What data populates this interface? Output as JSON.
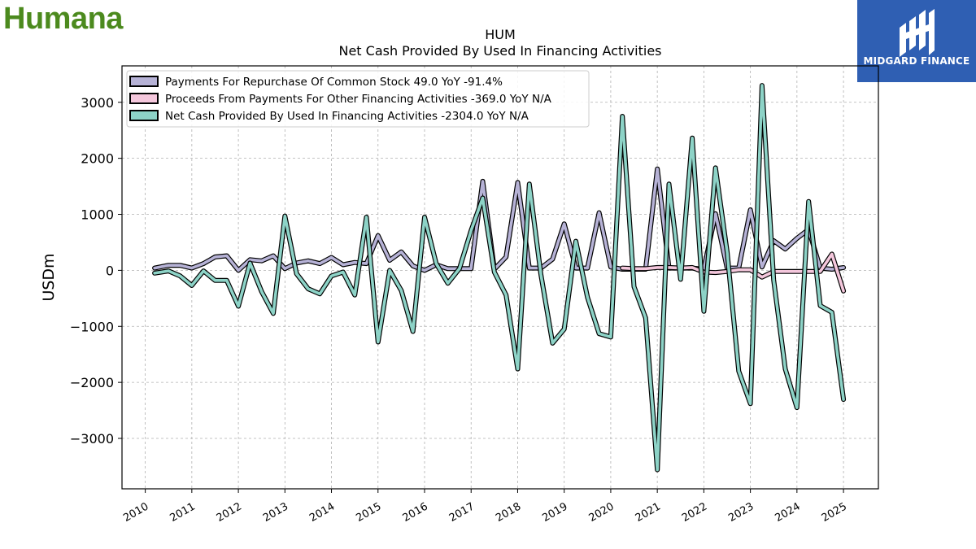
{
  "header": {
    "left_logo_text": "Humana",
    "right_logo_text": "MIDGARD FINANCE"
  },
  "colors": {
    "humana_green": "#4c8a1e",
    "midgard_blue": "#2f5fb3"
  },
  "chart_data": {
    "type": "line",
    "title": "HUM",
    "subtitle": "Net Cash Provided By Used In Financing Activities",
    "ylabel": "USDm",
    "xlabel": "",
    "xlim": [
      2009.5,
      2025.75
    ],
    "ylim": [
      -3900,
      3650
    ],
    "yticks": [
      -3000,
      -2000,
      -1000,
      0,
      1000,
      2000,
      3000
    ],
    "ytick_labels": [
      "−3000",
      "−2000",
      "−1000",
      "0",
      "1000",
      "2000",
      "3000"
    ],
    "xticks": [
      2010,
      2011,
      2012,
      2013,
      2014,
      2015,
      2016,
      2017,
      2018,
      2019,
      2020,
      2021,
      2022,
      2023,
      2024,
      2025
    ],
    "xtick_labels": [
      "2010",
      "2011",
      "2012",
      "2013",
      "2014",
      "2015",
      "2016",
      "2017",
      "2018",
      "2019",
      "2020",
      "2021",
      "2022",
      "2023",
      "2024",
      "2025"
    ],
    "grid": true,
    "legend_position": "top-left",
    "series": [
      {
        "name": "Payments For Repurchase Of Common Stock  49.0 YoY -91.4%",
        "color": "#b6b2d6",
        "points": [
          [
            2010.2,
            40
          ],
          [
            2010.5,
            90
          ],
          [
            2010.75,
            90
          ],
          [
            2011.0,
            40
          ],
          [
            2011.25,
            120
          ],
          [
            2011.5,
            240
          ],
          [
            2011.75,
            260
          ],
          [
            2012.0,
            0
          ],
          [
            2012.25,
            190
          ],
          [
            2012.5,
            170
          ],
          [
            2012.75,
            260
          ],
          [
            2013.0,
            30
          ],
          [
            2013.25,
            130
          ],
          [
            2013.5,
            170
          ],
          [
            2013.75,
            120
          ],
          [
            2014.0,
            230
          ],
          [
            2014.25,
            100
          ],
          [
            2014.5,
            140
          ],
          [
            2014.75,
            120
          ],
          [
            2015.0,
            620
          ],
          [
            2015.25,
            180
          ],
          [
            2015.5,
            330
          ],
          [
            2015.75,
            80
          ],
          [
            2016.0,
            0
          ],
          [
            2016.25,
            100
          ],
          [
            2016.5,
            30
          ],
          [
            2016.75,
            30
          ],
          [
            2017.0,
            30
          ],
          [
            2017.25,
            1590
          ],
          [
            2017.5,
            20
          ],
          [
            2017.75,
            240
          ],
          [
            2018.0,
            1570
          ],
          [
            2018.25,
            40
          ],
          [
            2018.5,
            40
          ],
          [
            2018.75,
            200
          ],
          [
            2019.0,
            830
          ],
          [
            2019.25,
            40
          ],
          [
            2019.5,
            40
          ],
          [
            2019.75,
            1030
          ],
          [
            2020.0,
            60
          ],
          [
            2020.25,
            20
          ],
          [
            2020.5,
            20
          ],
          [
            2020.75,
            20
          ],
          [
            2021.0,
            1810
          ],
          [
            2021.25,
            40
          ],
          [
            2021.5,
            40
          ],
          [
            2021.75,
            40
          ],
          [
            2022.0,
            20
          ],
          [
            2022.25,
            1010
          ],
          [
            2022.5,
            40
          ],
          [
            2022.75,
            40
          ],
          [
            2023.0,
            1080
          ],
          [
            2023.25,
            60
          ],
          [
            2023.5,
            530
          ],
          [
            2023.75,
            380
          ],
          [
            2024.0,
            570
          ],
          [
            2024.25,
            730
          ],
          [
            2024.5,
            40
          ],
          [
            2024.75,
            20
          ],
          [
            2025.0,
            49
          ]
        ]
      },
      {
        "name": "Proceeds From Payments For Other Financing Activities  -369.0 YoY N/A",
        "color": "#f4c7dc",
        "points": [
          [
            2020.25,
            40
          ],
          [
            2020.5,
            30
          ],
          [
            2020.75,
            30
          ],
          [
            2021.0,
            50
          ],
          [
            2021.25,
            50
          ],
          [
            2021.5,
            40
          ],
          [
            2021.75,
            50
          ],
          [
            2022.0,
            -30
          ],
          [
            2022.25,
            -40
          ],
          [
            2022.5,
            -20
          ],
          [
            2022.75,
            10
          ],
          [
            2023.0,
            10
          ],
          [
            2023.25,
            -120
          ],
          [
            2023.5,
            -20
          ],
          [
            2023.75,
            -20
          ],
          [
            2024.0,
            -20
          ],
          [
            2024.25,
            -20
          ],
          [
            2024.5,
            -20
          ],
          [
            2024.75,
            290
          ],
          [
            2025.0,
            -369
          ]
        ]
      },
      {
        "name": "Net Cash Provided By Used In Financing Activities  -2304.0 YoY N/A",
        "color": "#8dd3c7",
        "points": [
          [
            2010.2,
            -50
          ],
          [
            2010.5,
            -10
          ],
          [
            2010.75,
            -100
          ],
          [
            2011.0,
            -270
          ],
          [
            2011.25,
            -10
          ],
          [
            2011.5,
            -180
          ],
          [
            2011.75,
            -180
          ],
          [
            2012.0,
            -640
          ],
          [
            2012.25,
            130
          ],
          [
            2012.5,
            -380
          ],
          [
            2012.75,
            -770
          ],
          [
            2013.0,
            970
          ],
          [
            2013.25,
            -60
          ],
          [
            2013.5,
            -330
          ],
          [
            2013.75,
            -420
          ],
          [
            2014.0,
            -100
          ],
          [
            2014.25,
            -30
          ],
          [
            2014.5,
            -440
          ],
          [
            2014.75,
            950
          ],
          [
            2015.0,
            -1280
          ],
          [
            2015.25,
            0
          ],
          [
            2015.5,
            -360
          ],
          [
            2015.75,
            -1090
          ],
          [
            2016.0,
            950
          ],
          [
            2016.25,
            120
          ],
          [
            2016.5,
            -230
          ],
          [
            2016.75,
            30
          ],
          [
            2017.0,
            710
          ],
          [
            2017.25,
            1290
          ],
          [
            2017.5,
            -30
          ],
          [
            2017.75,
            -440
          ],
          [
            2018.0,
            -1760
          ],
          [
            2018.25,
            1540
          ],
          [
            2018.5,
            -80
          ],
          [
            2018.75,
            -1300
          ],
          [
            2019.0,
            -1050
          ],
          [
            2019.25,
            520
          ],
          [
            2019.5,
            -480
          ],
          [
            2019.75,
            -1130
          ],
          [
            2020.0,
            -1190
          ],
          [
            2020.25,
            2750
          ],
          [
            2020.5,
            -290
          ],
          [
            2020.75,
            -850
          ],
          [
            2021.0,
            -3560
          ],
          [
            2021.25,
            1540
          ],
          [
            2021.5,
            -160
          ],
          [
            2021.75,
            2360
          ],
          [
            2022.0,
            -730
          ],
          [
            2022.25,
            1830
          ],
          [
            2022.5,
            330
          ],
          [
            2022.75,
            -1800
          ],
          [
            2023.0,
            -2380
          ],
          [
            2023.25,
            3300
          ],
          [
            2023.5,
            -170
          ],
          [
            2023.75,
            -1760
          ],
          [
            2024.0,
            -2450
          ],
          [
            2024.25,
            1230
          ],
          [
            2024.5,
            -630
          ],
          [
            2024.75,
            -750
          ],
          [
            2025.0,
            -2304
          ]
        ]
      }
    ]
  }
}
